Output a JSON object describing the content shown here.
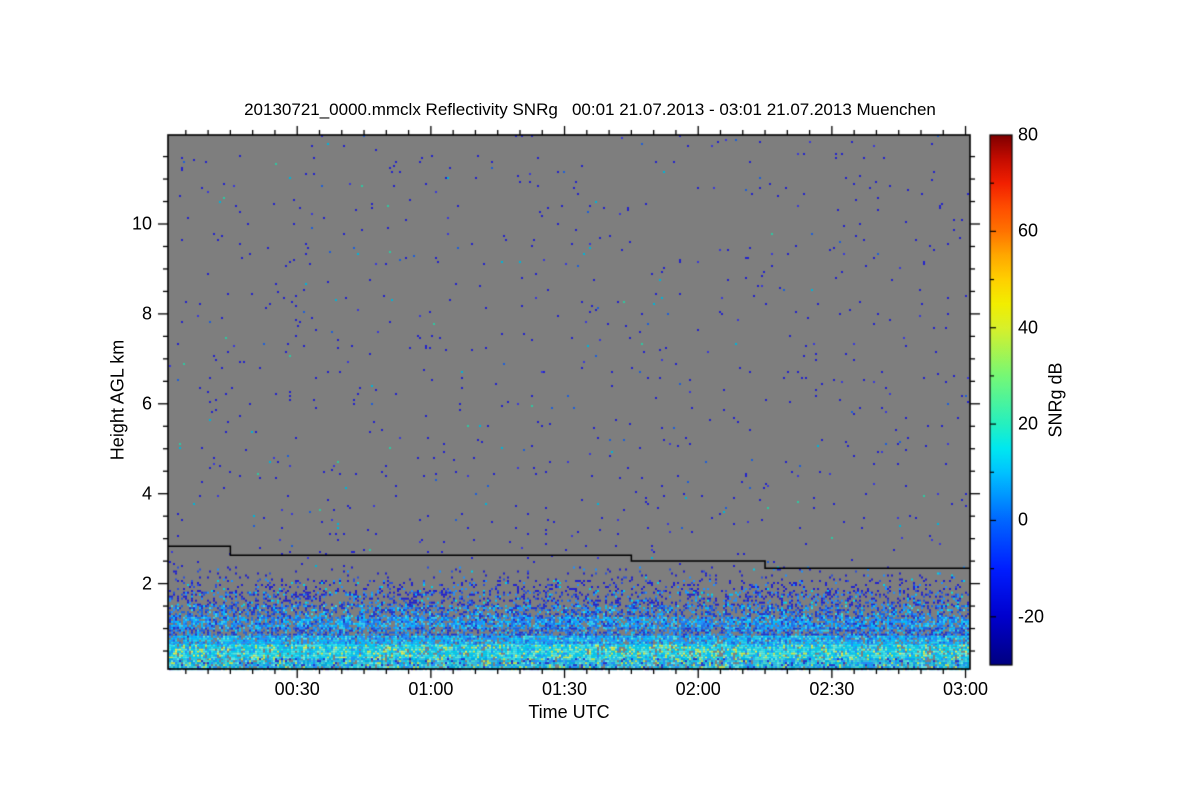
{
  "chart_data": {
    "type": "heatmap",
    "title": "20130721_0000.mmclx Reflectivity SNRg   00:01 21.07.2013 - 03:01 21.07.2013 Muenchen",
    "xlabel": "Time UTC",
    "ylabel": "Height AGL km",
    "plot_background_color": "#7e7e7e",
    "frame_color": "#000000",
    "x_axis": {
      "start_minutes": 1,
      "end_minutes": 181,
      "major_ticks": [
        {
          "label": "00:30",
          "minutes": 30
        },
        {
          "label": "01:00",
          "minutes": 60
        },
        {
          "label": "01:30",
          "minutes": 90
        },
        {
          "label": "02:00",
          "minutes": 120
        },
        {
          "label": "02:30",
          "minutes": 150
        },
        {
          "label": "03:00",
          "minutes": 180
        }
      ],
      "minor_tick_interval_minutes": 5
    },
    "y_axis": {
      "min_km": 0.1,
      "max_km": 11.98,
      "major_ticks_km": [
        2,
        4,
        6,
        8,
        10
      ],
      "minor_tick_interval_km": 0.5
    },
    "colorbar": {
      "label": "SNRg dB",
      "min": -30,
      "max": 80,
      "major_ticks": [
        80,
        60,
        40,
        20,
        0,
        -20
      ],
      "minor_tick_interval": 10,
      "gradient_stops": [
        [
          -30,
          "#000080"
        ],
        [
          -20,
          "#0000cd"
        ],
        [
          -10,
          "#001eff"
        ],
        [
          0,
          "#0066ff"
        ],
        [
          10,
          "#00c3ff"
        ],
        [
          15,
          "#00e8f0"
        ],
        [
          20,
          "#25f0c0"
        ],
        [
          30,
          "#76f876"
        ],
        [
          40,
          "#d8f02a"
        ],
        [
          45,
          "#f2ee00"
        ],
        [
          50,
          "#ffd000"
        ],
        [
          55,
          "#ffa800"
        ],
        [
          60,
          "#ff7300"
        ],
        [
          65,
          "#ff4d00"
        ],
        [
          70,
          "#f22000"
        ],
        [
          75,
          "#c40c00"
        ],
        [
          80,
          "#7f0000"
        ]
      ]
    },
    "sensitivity_line": {
      "color": "#000000",
      "points_time_height": [
        [
          1,
          2.83
        ],
        [
          15,
          2.83
        ],
        [
          15,
          2.63
        ],
        [
          105,
          2.63
        ],
        [
          105,
          2.5
        ],
        [
          135,
          2.5
        ],
        [
          135,
          2.34
        ],
        [
          181,
          2.34
        ]
      ]
    },
    "noise_seed": 42,
    "echo_bands": [
      {
        "name": "upper-sparse-noise",
        "h": [
          2.38,
          11.98
        ],
        "coverage": 0.009,
        "palette": [
          [
            "#2222cc",
            0.72
          ],
          [
            "#3b3bd8",
            0.12
          ],
          [
            "#1e5fd8",
            0.08
          ],
          [
            "#00b4d8",
            0.05
          ],
          [
            "#2ec8a0",
            0.03
          ]
        ]
      },
      {
        "name": "below-line-sparse",
        "h": [
          2.08,
          2.38
        ],
        "coverage": 0.05,
        "palette": [
          [
            "#2222cc",
            0.7
          ],
          [
            "#2e4fd8",
            0.15
          ],
          [
            "#1e90ff",
            0.1
          ],
          [
            "#00cfe8",
            0.05
          ]
        ]
      },
      {
        "name": "speckle-2km",
        "h": [
          1.82,
          2.08
        ],
        "coverage": 0.17,
        "palette": [
          [
            "#2222cc",
            0.62
          ],
          [
            "#2e4fd8",
            0.18
          ],
          [
            "#1e90ff",
            0.12
          ],
          [
            "#00cfe8",
            0.08
          ]
        ]
      },
      {
        "name": "speckle-1p7km",
        "h": [
          1.52,
          1.82
        ],
        "coverage": 0.32,
        "palette": [
          [
            "#2222cc",
            0.5
          ],
          [
            "#2255dd",
            0.2
          ],
          [
            "#1e90ff",
            0.18
          ],
          [
            "#00bfff",
            0.08
          ],
          [
            "#00e0e0",
            0.04
          ]
        ]
      },
      {
        "name": "dense-1p4km",
        "h": [
          1.26,
          1.52
        ],
        "coverage": 0.5,
        "palette": [
          [
            "#2233cc",
            0.35
          ],
          [
            "#1e62e0",
            0.25
          ],
          [
            "#1e90ff",
            0.2
          ],
          [
            "#00bfff",
            0.12
          ],
          [
            "#30dce8",
            0.08
          ]
        ]
      },
      {
        "name": "bright-line-1p1km",
        "h": [
          1.02,
          1.26
        ],
        "coverage": 0.74,
        "palette": [
          [
            "#1e6fe8",
            0.25
          ],
          [
            "#1e90ff",
            0.25
          ],
          [
            "#00bfff",
            0.22
          ],
          [
            "#35d0f0",
            0.18
          ],
          [
            "#2233cc",
            0.1
          ]
        ]
      },
      {
        "name": "dark-blue-0p9km",
        "h": [
          0.84,
          1.02
        ],
        "coverage": 0.6,
        "palette": [
          [
            "#2233cc",
            0.3
          ],
          [
            "#1e62e0",
            0.28
          ],
          [
            "#1e90ff",
            0.22
          ],
          [
            "#00bfff",
            0.12
          ],
          [
            "#30d0e8",
            0.08
          ]
        ]
      },
      {
        "name": "transition-0p7km",
        "h": [
          0.64,
          0.84
        ],
        "coverage": 0.88,
        "palette": [
          [
            "#1e90ff",
            0.28
          ],
          [
            "#00bfff",
            0.3
          ],
          [
            "#22d4ee",
            0.22
          ],
          [
            "#1e62e0",
            0.12
          ],
          [
            "#5ce8e0",
            0.08
          ]
        ]
      },
      {
        "name": "bright-cyan-0p5km",
        "h": [
          0.34,
          0.64
        ],
        "coverage": 0.97,
        "palette": [
          [
            "#00cfee",
            0.3
          ],
          [
            "#2ee3f2",
            0.2
          ],
          [
            "#58e8de",
            0.14
          ],
          [
            "#00bfff",
            0.12
          ],
          [
            "#8ff0c0",
            0.06
          ],
          [
            "#c9ea4d",
            0.08
          ],
          [
            "#e8ee55",
            0.03
          ],
          [
            "#1e90ff",
            0.07
          ]
        ]
      },
      {
        "name": "surface-band",
        "h": [
          0.1,
          0.34
        ],
        "coverage": 0.95,
        "palette": [
          [
            "#2bbfe8",
            0.26
          ],
          [
            "#00a9e0",
            0.18
          ],
          [
            "#45dbd3",
            0.16
          ],
          [
            "#1e90ff",
            0.14
          ],
          [
            "#bae455",
            0.07
          ],
          [
            "#2233cc",
            0.08
          ],
          [
            "#66e8ea",
            0.07
          ],
          [
            "#00cfee",
            0.04
          ]
        ]
      }
    ]
  }
}
